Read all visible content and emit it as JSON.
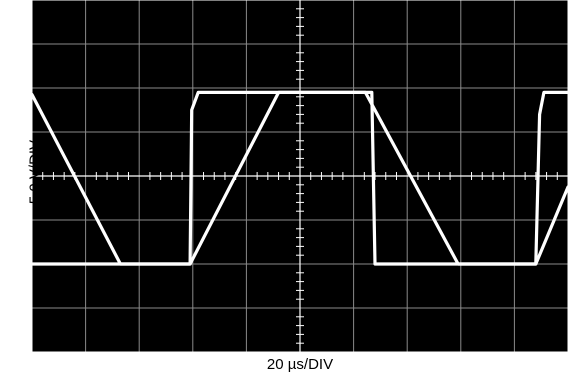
{
  "chart_data": {
    "type": "line",
    "title": "",
    "xlabel": "20 µs/DIV",
    "ylabel": "5.0 V/DIV",
    "grid": true,
    "divisions": {
      "x": 10,
      "y": 8
    },
    "xlim": [
      0,
      10
    ],
    "ylim": [
      -4,
      4
    ],
    "x_unit": "div",
    "y_unit": "div",
    "series": [
      {
        "values_x": [
          0,
          1.65,
          2.95,
          2.98,
          3.1,
          6.22,
          6.34,
          6.4,
          7.3,
          8.15,
          9.4,
          9.47,
          9.55,
          10
        ],
        "values_y": [
          -2,
          -2,
          -2,
          1.5,
          1.9,
          1.9,
          1.9,
          -2.0,
          -2.0,
          -2,
          -2,
          1.4,
          1.9,
          1.9
        ]
      },
      {
        "values_x": [
          0,
          1.65,
          2.95,
          4.6,
          6.22,
          7.95,
          9.4,
          10
        ],
        "values_y": [
          1.85,
          -2,
          -2,
          1.9,
          1.9,
          -2,
          -2,
          -0.25
        ]
      }
    ]
  },
  "colors": {
    "background": "#000000",
    "grid": "#8a8a8a",
    "axes": "#ffffff",
    "trace": "#ffffff",
    "frame": "#ffffff"
  }
}
